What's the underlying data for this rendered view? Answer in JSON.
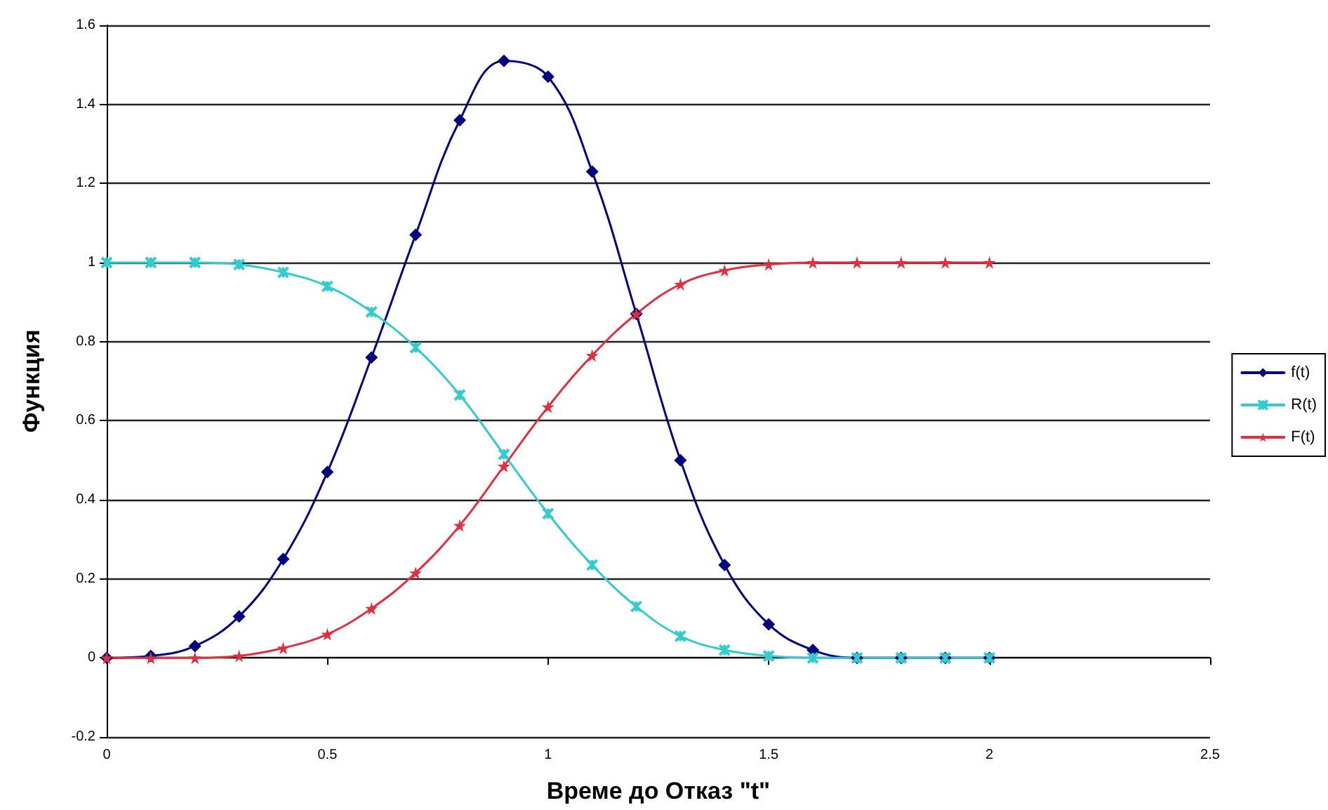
{
  "chart_data": {
    "type": "line",
    "xlabel": "Време до Отказ \"t\"",
    "ylabel": "Функция",
    "x": [
      0,
      0.1,
      0.2,
      0.3,
      0.4,
      0.5,
      0.6,
      0.7,
      0.8,
      0.9,
      1.0,
      1.1,
      1.2,
      1.3,
      1.4,
      1.5,
      1.6,
      1.7,
      1.8,
      1.9,
      2.0
    ],
    "series": [
      {
        "name": "f(t)",
        "color": "#000080",
        "marker": "diamond",
        "values": [
          0,
          0.005,
          0.03,
          0.105,
          0.25,
          0.47,
          0.76,
          1.07,
          1.36,
          1.51,
          1.47,
          1.23,
          0.87,
          0.5,
          0.235,
          0.085,
          0.02,
          0,
          0,
          0,
          0
        ]
      },
      {
        "name": "R(t)",
        "color": "#33cccc",
        "marker": "cross",
        "values": [
          1,
          1,
          1,
          0.995,
          0.975,
          0.94,
          0.875,
          0.785,
          0.665,
          0.515,
          0.365,
          0.235,
          0.13,
          0.055,
          0.02,
          0.005,
          0,
          0,
          0,
          0,
          0
        ]
      },
      {
        "name": "F(t)",
        "color": "#e03040",
        "marker": "star",
        "values": [
          0,
          0,
          0,
          0.005,
          0.025,
          0.06,
          0.125,
          0.215,
          0.335,
          0.485,
          0.635,
          0.765,
          0.87,
          0.945,
          0.98,
          0.995,
          1,
          1,
          1,
          1,
          1
        ]
      }
    ],
    "xlim": [
      0,
      2.5
    ],
    "xticks": [
      0,
      0.5,
      1,
      1.5,
      2,
      2.5
    ],
    "ylim": [
      -0.2,
      1.6
    ],
    "yticks": [
      -0.2,
      0,
      0.2,
      0.4,
      0.6,
      0.8,
      1,
      1.2,
      1.4,
      1.6
    ],
    "grid": "y",
    "legend": "right",
    "line_style": "solid"
  }
}
